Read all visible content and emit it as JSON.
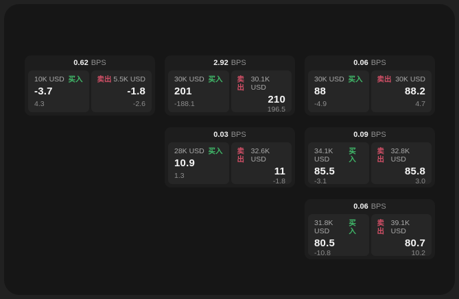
{
  "labels": {
    "buy": "买入",
    "sell": "卖出",
    "bps_unit": "BPS"
  },
  "colors": {
    "buy_green": "#40b869",
    "sell_red": "#d04f66",
    "window_bg": "#161616",
    "card_bg": "#1d1d1d",
    "panel_bg": "#262626"
  },
  "cards": [
    {
      "row": 1,
      "col": 1,
      "bps": "0.62",
      "buy": {
        "amount": "10K USD",
        "value": "-3.7",
        "sub": "4.3"
      },
      "sell": {
        "amount": "5.5K USD",
        "value": "-1.8",
        "sub": "-2.6"
      }
    },
    {
      "row": 1,
      "col": 2,
      "bps": "2.92",
      "buy": {
        "amount": "30K USD",
        "value": "201",
        "sub": "-188.1"
      },
      "sell": {
        "amount": "30.1K USD",
        "value": "210",
        "sub": "196.5"
      }
    },
    {
      "row": 1,
      "col": 3,
      "bps": "0.06",
      "buy": {
        "amount": "30K USD",
        "value": "88",
        "sub": "-4.9"
      },
      "sell": {
        "amount": "30K USD",
        "value": "88.2",
        "sub": "4.7"
      }
    },
    {
      "row": 2,
      "col": 2,
      "bps": "0.03",
      "buy": {
        "amount": "28K USD",
        "value": "10.9",
        "sub": "1.3"
      },
      "sell": {
        "amount": "32.6K USD",
        "value": "11",
        "sub": "-1.8"
      }
    },
    {
      "row": 2,
      "col": 3,
      "bps": "0.09",
      "buy": {
        "amount": "34.1K USD",
        "value": "85.5",
        "sub": "-3.1"
      },
      "sell": {
        "amount": "32.8K USD",
        "value": "85.8",
        "sub": "3.0"
      }
    },
    {
      "row": 3,
      "col": 3,
      "bps": "0.06",
      "buy": {
        "amount": "31.8K USD",
        "value": "80.5",
        "sub": "-10.8"
      },
      "sell": {
        "amount": "39.1K USD",
        "value": "80.7",
        "sub": "10.2"
      }
    }
  ]
}
